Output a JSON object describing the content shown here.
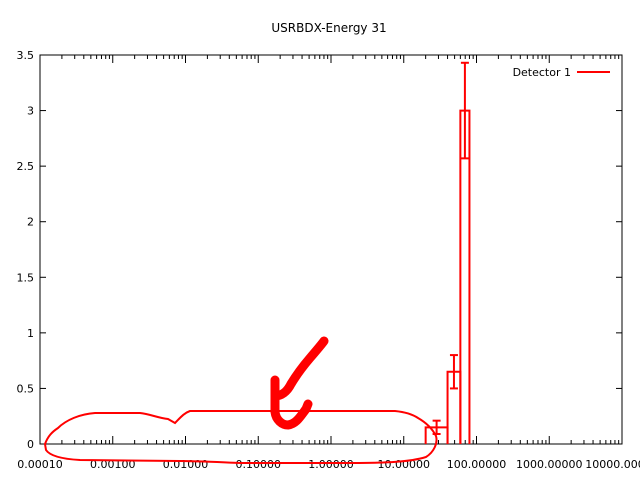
{
  "chart_data": {
    "type": "histogram",
    "title": "USRBDX-Energy 31",
    "xlabel": "",
    "ylabel": "",
    "x_scale": "log",
    "xlim": [
      0.0001,
      10000
    ],
    "ylim": [
      0,
      3.5
    ],
    "x_tick_labels": [
      "0.00010",
      "0.00100",
      "0.01000",
      "0.10000",
      "1.00000",
      "10.00000",
      "100.00000",
      "1000.00000",
      "10000.00000"
    ],
    "x_tick_values": [
      0.0001,
      0.001,
      0.01,
      0.1,
      1,
      10,
      100,
      1000,
      10000
    ],
    "y_tick_labels": [
      "0",
      "0.5",
      "1",
      "1.5",
      "2",
      "2.5",
      "3",
      "3.5"
    ],
    "y_tick_values": [
      0,
      0.5,
      1,
      1.5,
      2,
      2.5,
      3,
      3.5
    ],
    "grid": false,
    "legend": "top-right",
    "series": [
      {
        "name": "Detector 1",
        "color": "#ff0000",
        "bins": [
          {
            "x_low": 20,
            "x_high": 40,
            "value": 0.15,
            "err": 0.06
          },
          {
            "x_low": 40,
            "x_high": 60,
            "value": 0.65,
            "err": 0.15
          },
          {
            "x_low": 60,
            "x_high": 80,
            "value": 3.0,
            "err": 0.43
          }
        ]
      }
    ],
    "annotations": {
      "color": "#ff0000",
      "description": "hand-drawn red marks"
    }
  }
}
